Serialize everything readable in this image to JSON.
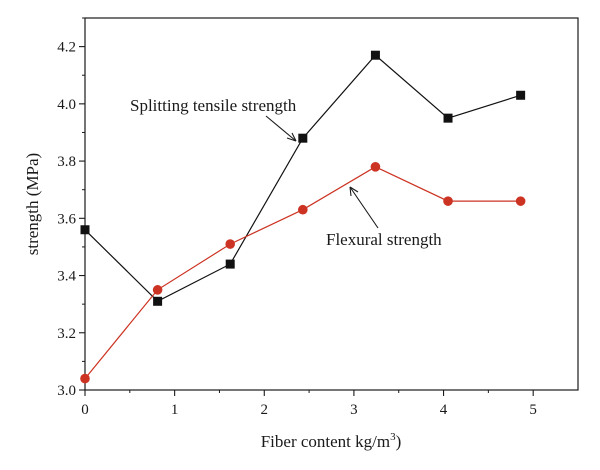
{
  "chart_data": {
    "type": "line",
    "xlabel": "Fiber content kg/m",
    "xlabel_superscript": "3",
    "xlabel_suffix": ")",
    "ylabel": "strength (MPa)",
    "xlim": [
      0,
      5.5
    ],
    "ylim": [
      3.0,
      4.3
    ],
    "x_ticks": [
      0,
      1,
      2,
      3,
      4,
      5
    ],
    "y_ticks": [
      3.0,
      3.2,
      3.4,
      3.6,
      3.8,
      4.0,
      4.2
    ],
    "grid": false,
    "series": [
      {
        "name": "Splitting tensile strength",
        "marker": "square",
        "color": "#111111",
        "x": [
          0,
          0.81,
          1.62,
          2.43,
          3.24,
          4.05,
          4.86
        ],
        "values": [
          3.56,
          3.31,
          3.44,
          3.88,
          4.17,
          3.95,
          4.03
        ]
      },
      {
        "name": "Flexural strength",
        "marker": "circle",
        "color": "#cc3322",
        "x": [
          0,
          0.81,
          1.62,
          2.43,
          3.24,
          4.05,
          4.86
        ],
        "values": [
          3.04,
          3.35,
          3.51,
          3.63,
          3.78,
          3.66,
          3.66
        ]
      }
    ],
    "annotations": [
      {
        "text": "Splitting tensile strength",
        "series": 0
      },
      {
        "text": "Flexural strength",
        "series": 1
      }
    ]
  }
}
